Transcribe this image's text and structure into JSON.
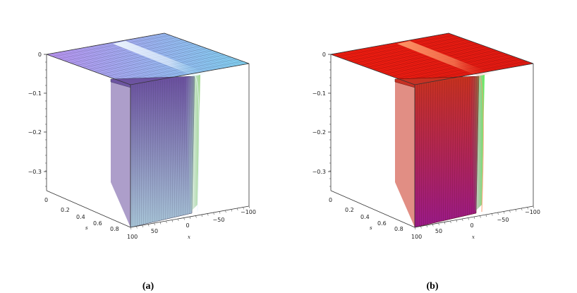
{
  "panels": [
    {
      "id": "a",
      "caption": "(a)",
      "surface_colors": {
        "top_left": "#b892f0",
        "top_right": "#7fd1f0",
        "wall_top": "#6a4f9e",
        "wall_bottom": "#a8c6d8",
        "ridge": "#eef8ff",
        "edge_tint": "#8fd07a",
        "mesh": "#3a3a55"
      },
      "z_ticks": [
        "0",
        "−0.1",
        "−0.2",
        "−0.3"
      ],
      "s_ticks": [
        "0",
        "0.2",
        "0.4",
        "0.6",
        "0.8",
        "100"
      ],
      "s_label": "s",
      "x_ticks": [
        "50",
        "0",
        "−50",
        "−100"
      ],
      "x_label": "x"
    },
    {
      "id": "b",
      "caption": "(b)",
      "surface_colors": {
        "top_left": "#ee1c10",
        "top_right": "#e21a12",
        "wall_top": "#c8321f",
        "wall_bottom": "#9a1a8a",
        "ridge": "#ff9a6a",
        "edge_tint": "#3ef03a",
        "mesh": "#4a0a0a"
      },
      "z_ticks": [
        "0",
        "−0.1",
        "−0.2",
        "−0.3"
      ],
      "s_ticks": [
        "0",
        "0.2",
        "0.4",
        "0.6",
        "0.8",
        "100"
      ],
      "s_label": "s",
      "x_ticks": [
        "50",
        "0",
        "−50",
        "−100"
      ],
      "x_label": "x"
    }
  ]
}
